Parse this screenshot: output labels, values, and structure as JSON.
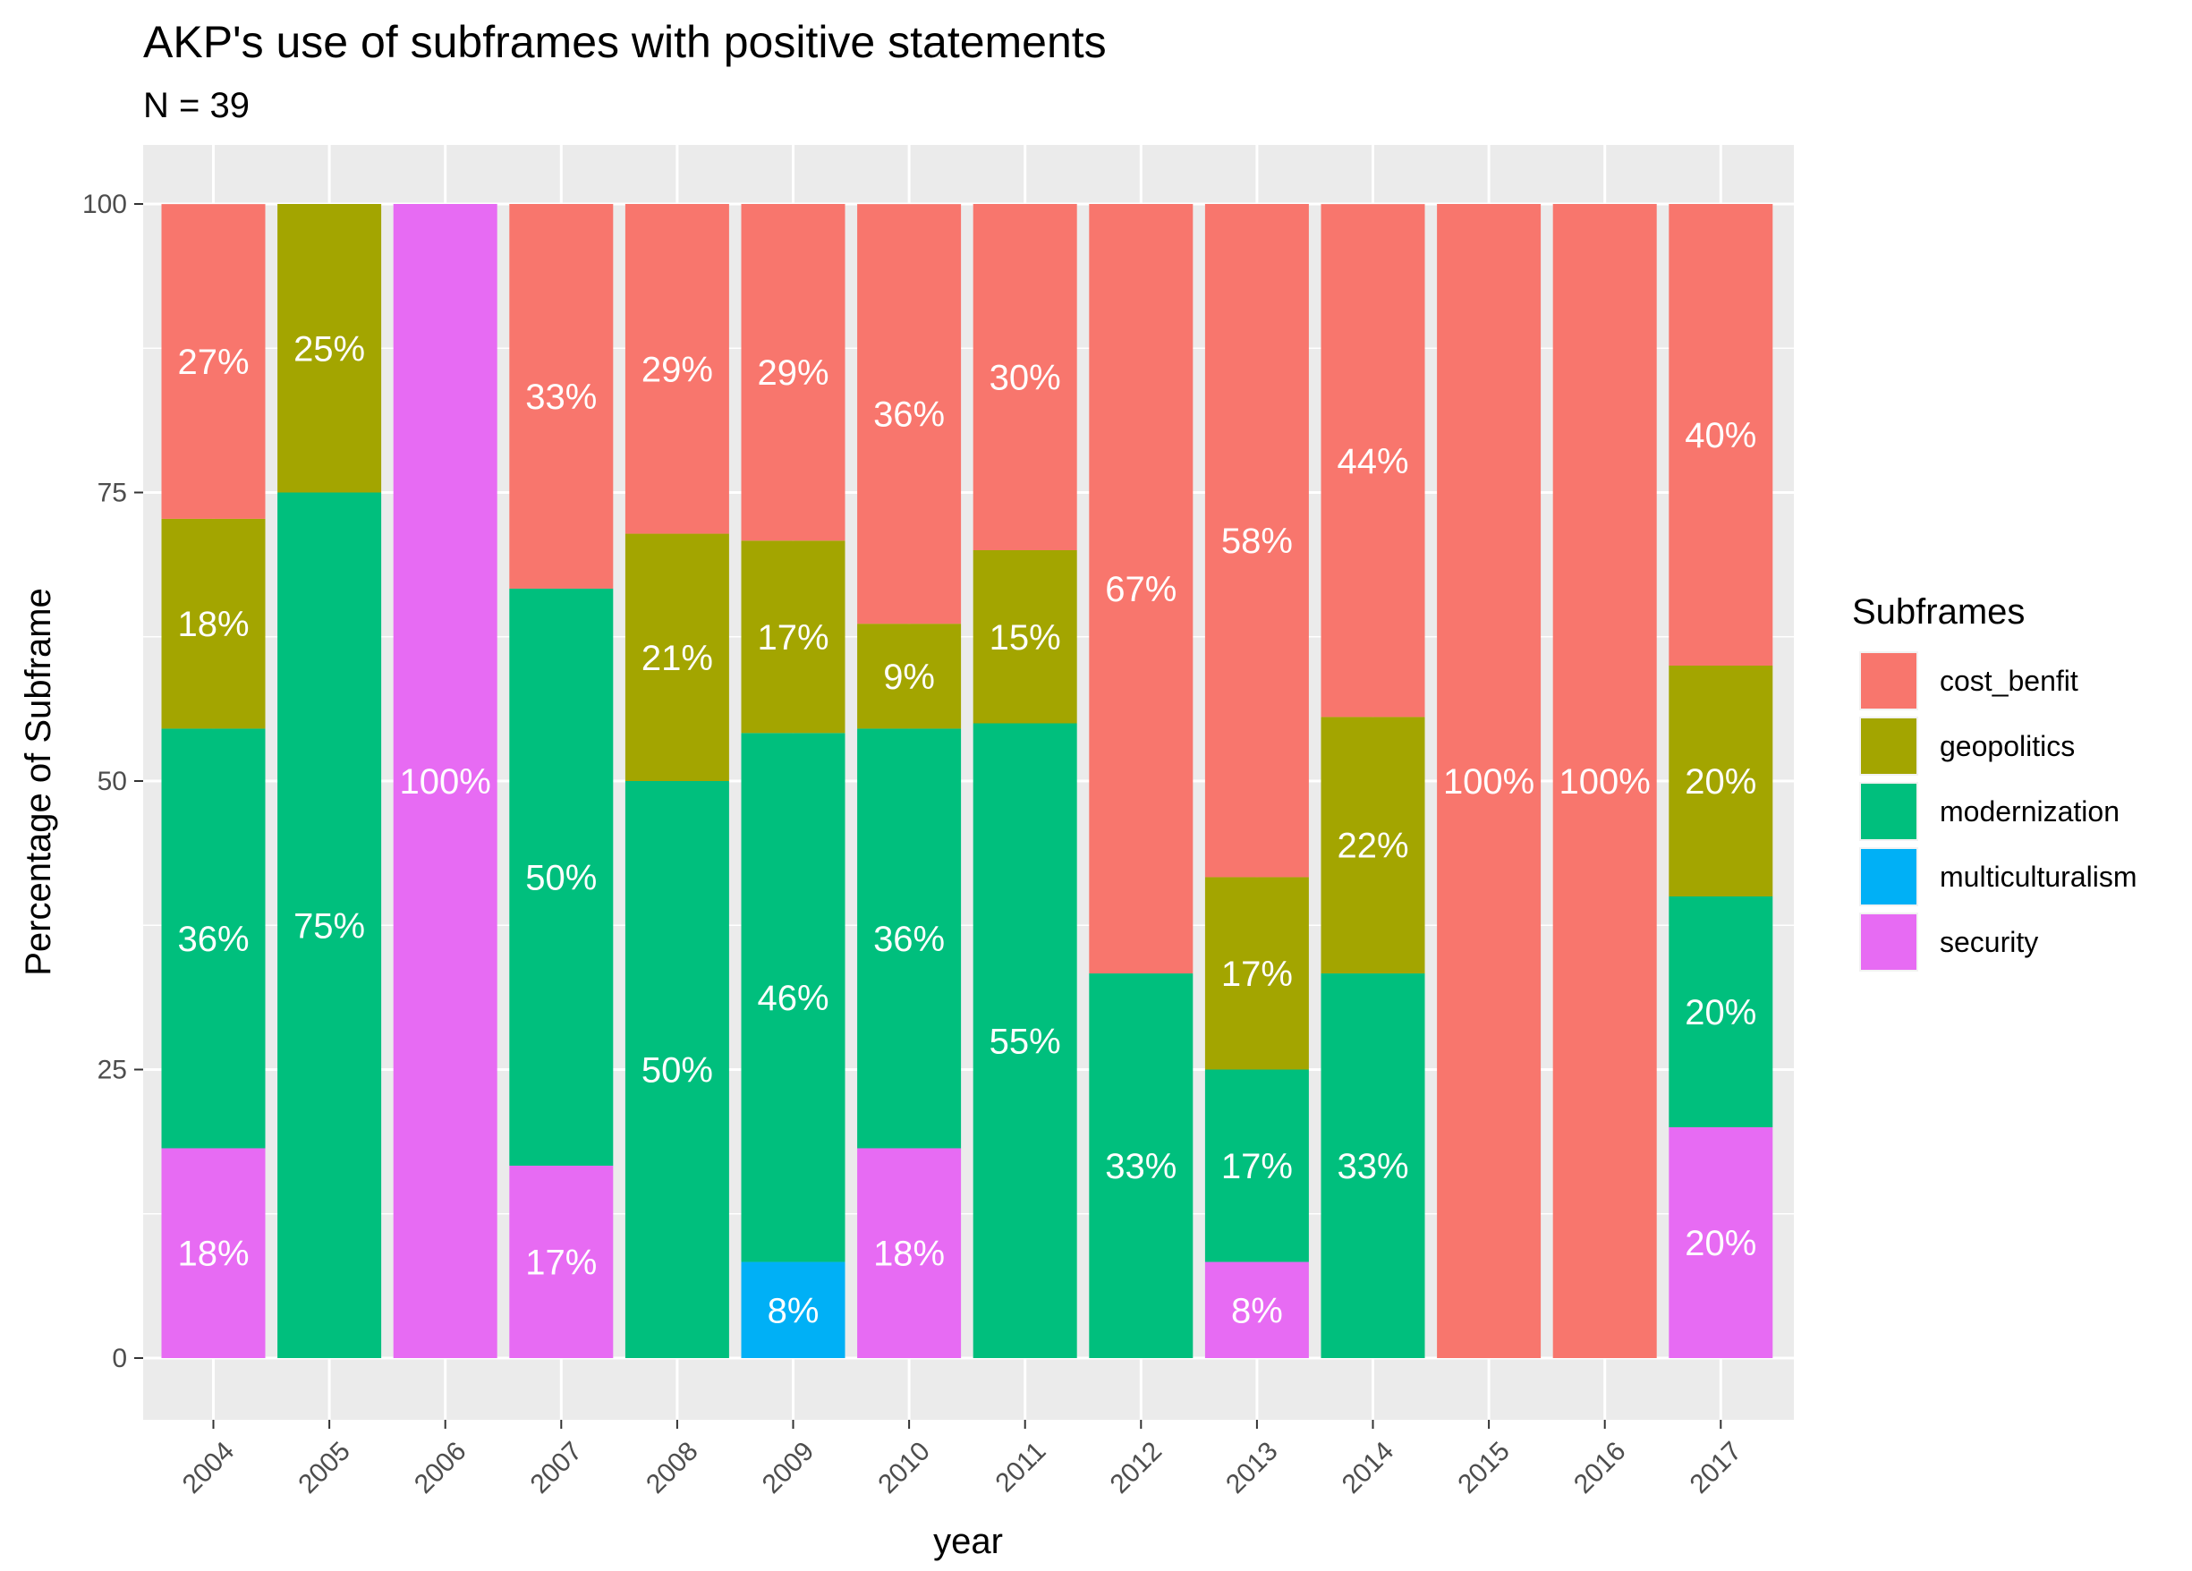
{
  "chart_data": {
    "type": "bar",
    "stacked": true,
    "title": "AKP's use of subframes with positive statements",
    "subtitle": "N = 39",
    "xlabel": "year",
    "ylabel": "Percentage of Subframe",
    "ylim": [
      0,
      100
    ],
    "yticks": [
      "0",
      "25",
      "50",
      "75",
      "100"
    ],
    "grid": true,
    "legend_title": "Subframes",
    "legend_position": "right",
    "categories": [
      "2004",
      "2005",
      "2006",
      "2007",
      "2008",
      "2009",
      "2010",
      "2011",
      "2012",
      "2013",
      "2014",
      "2015",
      "2016",
      "2017"
    ],
    "series": [
      {
        "name": "cost_benfit",
        "color": "#F8766D",
        "values": [
          27.27,
          0,
          0,
          33.33,
          28.57,
          29.17,
          36.36,
          30,
          66.67,
          58.33,
          44.44,
          100,
          100,
          40
        ],
        "labels": [
          "27%",
          "",
          "",
          "33%",
          "29%",
          "29%",
          "36%",
          "30%",
          "67%",
          "58%",
          "44%",
          "100%",
          "100%",
          "40%"
        ]
      },
      {
        "name": "geopolitics",
        "color": "#A3A500",
        "values": [
          18.18,
          25,
          0,
          0,
          21.43,
          16.67,
          9.09,
          15,
          0,
          16.67,
          22.22,
          0,
          0,
          20
        ],
        "labels": [
          "18%",
          "25%",
          "",
          "",
          "21%",
          "17%",
          "9%",
          "15%",
          "",
          "17%",
          "22%",
          "",
          "",
          "20%"
        ]
      },
      {
        "name": "modernization",
        "color": "#00BF7D",
        "values": [
          36.36,
          75,
          0,
          50,
          50,
          45.83,
          36.36,
          55,
          33.33,
          16.67,
          33.33,
          0,
          0,
          20
        ],
        "labels": [
          "36%",
          "75%",
          "",
          "50%",
          "50%",
          "46%",
          "36%",
          "55%",
          "33%",
          "17%",
          "33%",
          "",
          "",
          "20%"
        ]
      },
      {
        "name": "multiculturalism",
        "color": "#00B0F6",
        "values": [
          0,
          0,
          0,
          0,
          0,
          8.33,
          0,
          0,
          0,
          0,
          0,
          0,
          0,
          0
        ],
        "labels": [
          "",
          "",
          "",
          "",
          "",
          "8%",
          "",
          "",
          "",
          "",
          "",
          "",
          "",
          ""
        ]
      },
      {
        "name": "security",
        "color": "#E76BF3",
        "values": [
          18.18,
          0,
          100,
          16.67,
          0,
          0,
          18.18,
          0,
          0,
          8.33,
          0,
          0,
          0,
          20
        ],
        "labels": [
          "18%",
          "",
          "100%",
          "17%",
          "",
          "",
          "18%",
          "",
          "",
          "8%",
          "",
          "",
          "",
          "20%"
        ]
      }
    ]
  }
}
